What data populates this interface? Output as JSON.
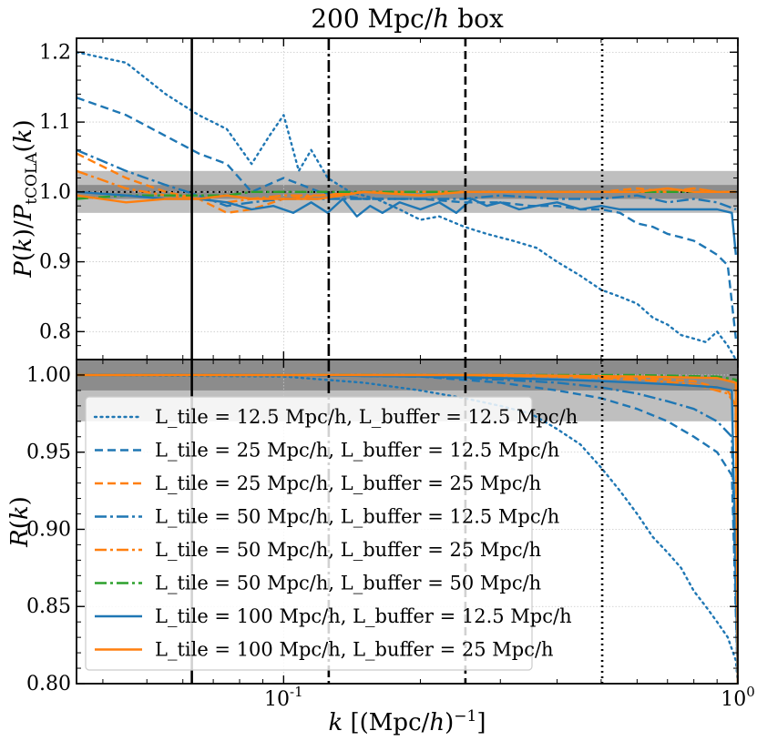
{
  "chart_data": [
    {
      "type": "line",
      "id": "top",
      "title": "200 Mpc/h box",
      "ylabel": "P(k)/P_tCOLA(k)",
      "xscale": "log",
      "xlim": [
        0.035,
        1.0
      ],
      "ylim": [
        0.76,
        1.22
      ],
      "yticks": [
        0.8,
        0.9,
        1.0,
        1.1,
        1.2
      ],
      "ytick_labels": [
        "0.8",
        "0.9",
        "1.0",
        "1.1",
        "1.2"
      ],
      "grid": true,
      "bands": [
        {
          "ymin": 0.97,
          "ymax": 1.03,
          "color": "#bfbfbf"
        },
        {
          "ymin": 0.99,
          "ymax": 1.01,
          "color": "#8c8c8c"
        }
      ],
      "hlines": [
        {
          "y": 1.0,
          "style": "dotted",
          "color": "#000000"
        }
      ],
      "vlines": [
        {
          "x": 0.0628,
          "style": "solid"
        },
        {
          "x": 0.1257,
          "style": "dashdot"
        },
        {
          "x": 0.2513,
          "style": "dashed"
        },
        {
          "x": 0.5027,
          "style": "dotted"
        }
      ],
      "series": [
        {
          "name": "L_tile = 12.5 Mpc/h, L_buffer = 12.5 Mpc/h",
          "color": "#1f77b4",
          "style": "dotted",
          "x": [
            0.035,
            0.045,
            0.055,
            0.065,
            0.075,
            0.085,
            0.093,
            0.1,
            0.108,
            0.115,
            0.125,
            0.14,
            0.16,
            0.18,
            0.2,
            0.22,
            0.25,
            0.28,
            0.32,
            0.36,
            0.4,
            0.45,
            0.5,
            0.55,
            0.6,
            0.65,
            0.7,
            0.75,
            0.8,
            0.85,
            0.9,
            0.95,
            0.99
          ],
          "y": [
            1.2,
            1.185,
            1.14,
            1.11,
            1.09,
            1.04,
            1.08,
            1.11,
            1.03,
            1.06,
            1.02,
            1.0,
            0.99,
            0.975,
            0.96,
            0.965,
            0.95,
            0.94,
            0.93,
            0.92,
            0.9,
            0.88,
            0.86,
            0.85,
            0.84,
            0.82,
            0.81,
            0.795,
            0.79,
            0.785,
            0.8,
            0.78,
            0.76
          ]
        },
        {
          "name": "L_tile = 25 Mpc/h, L_buffer = 12.5 Mpc/h",
          "color": "#1f77b4",
          "style": "dashed",
          "x": [
            0.035,
            0.045,
            0.055,
            0.065,
            0.075,
            0.085,
            0.1,
            0.12,
            0.15,
            0.2,
            0.25,
            0.3,
            0.35,
            0.4,
            0.45,
            0.5,
            0.55,
            0.6,
            0.65,
            0.7,
            0.75,
            0.8,
            0.85,
            0.9,
            0.95,
            0.99
          ],
          "y": [
            1.135,
            1.11,
            1.08,
            1.055,
            1.04,
            1.0,
            1.02,
            1.0,
            0.99,
            0.99,
            0.985,
            0.985,
            0.98,
            0.98,
            0.975,
            0.975,
            0.97,
            0.955,
            0.95,
            0.94,
            0.935,
            0.93,
            0.92,
            0.91,
            0.895,
            0.79
          ]
        },
        {
          "name": "L_tile = 25 Mpc/h, L_buffer = 25 Mpc/h",
          "color": "#ff7f0e",
          "style": "dashed",
          "x": [
            0.035,
            0.045,
            0.055,
            0.065,
            0.075,
            0.085,
            0.1,
            0.12,
            0.15,
            0.2,
            0.25,
            0.3,
            0.4,
            0.5,
            0.6,
            0.7,
            0.8,
            0.9,
            0.99
          ],
          "y": [
            1.055,
            1.02,
            1.0,
            0.99,
            0.97,
            0.975,
            0.99,
            0.995,
            1.0,
            1.0,
            1.0,
            1.0,
            1.0,
            1.0,
            1.005,
            1.0,
            1.005,
            1.0,
            1.0
          ]
        },
        {
          "name": "L_tile = 50 Mpc/h, L_buffer = 12.5 Mpc/h",
          "color": "#1f77b4",
          "style": "dashdot",
          "x": [
            0.035,
            0.045,
            0.055,
            0.065,
            0.075,
            0.085,
            0.1,
            0.12,
            0.15,
            0.2,
            0.25,
            0.3,
            0.4,
            0.5,
            0.6,
            0.7,
            0.8,
            0.9,
            0.99
          ],
          "y": [
            1.06,
            1.03,
            1.01,
            0.995,
            0.98,
            0.985,
            0.99,
            0.99,
            0.99,
            0.99,
            0.99,
            0.995,
            0.99,
            0.99,
            0.995,
            0.985,
            0.99,
            0.985,
            0.975
          ]
        },
        {
          "name": "L_tile = 50 Mpc/h, L_buffer = 25 Mpc/h",
          "color": "#ff7f0e",
          "style": "dashdot",
          "x": [
            0.035,
            0.045,
            0.055,
            0.065,
            0.075,
            0.085,
            0.1,
            0.12,
            0.15,
            0.2,
            0.3,
            0.4,
            0.5,
            0.6,
            0.7,
            0.8,
            0.9,
            0.99
          ],
          "y": [
            1.03,
            1.005,
            0.995,
            0.99,
            0.985,
            0.99,
            0.995,
            0.995,
            1.0,
            1.0,
            1.0,
            1.0,
            1.0,
            1.0,
            1.0,
            1.005,
            1.0,
            1.0
          ]
        },
        {
          "name": "L_tile = 50 Mpc/h, L_buffer = 50 Mpc/h",
          "color": "#2ca02c",
          "style": "dashdot",
          "x": [
            0.035,
            0.045,
            0.055,
            0.065,
            0.075,
            0.085,
            0.1,
            0.12,
            0.15,
            0.2,
            0.3,
            0.4,
            0.5,
            0.6,
            0.7,
            0.8,
            0.9,
            0.99
          ],
          "y": [
            0.99,
            0.995,
            0.995,
            0.995,
            0.995,
            1.0,
            1.0,
            1.0,
            1.0,
            1.0,
            1.0,
            1.0,
            1.0,
            1.0,
            1.0,
            1.0,
            1.0,
            1.0
          ]
        },
        {
          "name": "L_tile = 100 Mpc/h, L_buffer = 12.5 Mpc/h",
          "color": "#1f77b4",
          "style": "solid",
          "x": [
            0.035,
            0.045,
            0.055,
            0.065,
            0.075,
            0.085,
            0.095,
            0.105,
            0.115,
            0.125,
            0.135,
            0.145,
            0.155,
            0.165,
            0.18,
            0.2,
            0.22,
            0.24,
            0.26,
            0.28,
            0.3,
            0.33,
            0.36,
            0.4,
            0.45,
            0.5,
            0.55,
            0.6,
            0.7,
            0.8,
            0.9,
            0.97,
            0.99
          ],
          "y": [
            1.0,
            0.995,
            0.99,
            0.99,
            0.985,
            0.975,
            0.98,
            0.97,
            0.985,
            0.97,
            0.99,
            0.965,
            0.98,
            0.97,
            0.985,
            0.975,
            0.985,
            0.97,
            0.99,
            0.98,
            0.985,
            0.975,
            0.98,
            0.985,
            0.975,
            0.98,
            0.975,
            0.975,
            0.975,
            0.975,
            0.975,
            0.97,
            0.91
          ]
        },
        {
          "name": "L_tile = 100 Mpc/h, L_buffer = 25 Mpc/h",
          "color": "#ff7f0e",
          "style": "solid",
          "x": [
            0.035,
            0.045,
            0.055,
            0.065,
            0.075,
            0.085,
            0.1,
            0.12,
            0.15,
            0.2,
            0.25,
            0.3,
            0.4,
            0.5,
            0.6,
            0.7,
            0.8,
            0.9,
            0.99
          ],
          "y": [
            0.995,
            0.985,
            0.99,
            0.99,
            0.995,
            0.99,
            0.99,
            0.99,
            1.0,
            0.995,
            1.0,
            1.0,
            1.0,
            1.0,
            1.0,
            1.005,
            1.0,
            1.0,
            1.0
          ]
        }
      ]
    },
    {
      "type": "line",
      "id": "bottom",
      "xlabel": "k [(Mpc/h)^-1]",
      "ylabel": "R(k)",
      "xscale": "log",
      "xlim": [
        0.035,
        1.0
      ],
      "ylim": [
        0.8,
        1.01
      ],
      "xticks": [
        0.1,
        1.0
      ],
      "xtick_labels": [
        "10^-1",
        "10^0"
      ],
      "yticks": [
        0.8,
        0.85,
        0.9,
        0.95,
        1.0
      ],
      "ytick_labels": [
        "0.80",
        "0.85",
        "0.90",
        "0.95",
        "1.00"
      ],
      "grid": true,
      "bands": [
        {
          "ymin": 0.97,
          "ymax": 1.01,
          "color": "#bfbfbf"
        },
        {
          "ymin": 0.99,
          "ymax": 1.01,
          "color": "#8c8c8c"
        }
      ],
      "vlines": [
        {
          "x": 0.0628,
          "style": "solid"
        },
        {
          "x": 0.1257,
          "style": "dashdot"
        },
        {
          "x": 0.2513,
          "style": "dashed"
        },
        {
          "x": 0.5027,
          "style": "dotted"
        }
      ],
      "legend": {
        "placement": "upper-left"
      },
      "series": [
        {
          "name": "L_tile = 12.5 Mpc/h, L_buffer = 12.5 Mpc/h",
          "color": "#1f77b4",
          "style": "dotted",
          "x": [
            0.035,
            0.1,
            0.15,
            0.2,
            0.25,
            0.3,
            0.35,
            0.4,
            0.45,
            0.5,
            0.55,
            0.6,
            0.65,
            0.7,
            0.75,
            0.8,
            0.85,
            0.9,
            0.95,
            0.99,
            1.0
          ],
          "y": [
            1.0,
            0.999,
            0.995,
            0.99,
            0.985,
            0.98,
            0.975,
            0.965,
            0.955,
            0.94,
            0.925,
            0.91,
            0.895,
            0.885,
            0.875,
            0.86,
            0.85,
            0.84,
            0.83,
            0.815,
            0.8
          ]
        },
        {
          "name": "L_tile = 25 Mpc/h, L_buffer = 12.5 Mpc/h",
          "color": "#1f77b4",
          "style": "dashed",
          "x": [
            0.035,
            0.1,
            0.2,
            0.3,
            0.4,
            0.5,
            0.6,
            0.7,
            0.8,
            0.9,
            0.97,
            1.0
          ],
          "y": [
            1.0,
            1.0,
            0.999,
            0.995,
            0.99,
            0.985,
            0.978,
            0.97,
            0.96,
            0.95,
            0.935,
            0.8
          ]
        },
        {
          "name": "L_tile = 25 Mpc/h, L_buffer = 25 Mpc/h",
          "color": "#ff7f0e",
          "style": "dashed",
          "x": [
            0.035,
            0.2,
            0.4,
            0.6,
            0.8,
            0.95,
            0.99,
            1.0
          ],
          "y": [
            1.0,
            1.0,
            0.999,
            0.998,
            0.996,
            0.99,
            0.98,
            0.8
          ]
        },
        {
          "name": "L_tile = 50 Mpc/h, L_buffer = 12.5 Mpc/h",
          "color": "#1f77b4",
          "style": "dashdot",
          "x": [
            0.035,
            0.1,
            0.2,
            0.3,
            0.4,
            0.5,
            0.6,
            0.7,
            0.8,
            0.9,
            0.97,
            1.0
          ],
          "y": [
            1.0,
            1.0,
            0.999,
            0.997,
            0.995,
            0.992,
            0.988,
            0.983,
            0.978,
            0.97,
            0.96,
            0.8
          ]
        },
        {
          "name": "L_tile = 50 Mpc/h, L_buffer = 25 Mpc/h",
          "color": "#ff7f0e",
          "style": "dashdot",
          "x": [
            0.035,
            0.2,
            0.4,
            0.6,
            0.8,
            0.95,
            0.99,
            1.0
          ],
          "y": [
            1.0,
            1.0,
            0.999,
            0.997,
            0.994,
            0.988,
            0.98,
            0.8
          ]
        },
        {
          "name": "L_tile = 50 Mpc/h, L_buffer = 50 Mpc/h",
          "color": "#2ca02c",
          "style": "dashdot",
          "x": [
            0.035,
            0.3,
            0.6,
            0.9,
            0.99,
            1.0
          ],
          "y": [
            1.0,
            1.0,
            1.0,
            0.999,
            0.997,
            0.8
          ]
        },
        {
          "name": "L_tile = 100 Mpc/h, L_buffer = 12.5 Mpc/h",
          "color": "#1f77b4",
          "style": "solid",
          "x": [
            0.035,
            0.1,
            0.2,
            0.3,
            0.4,
            0.5,
            0.6,
            0.7,
            0.8,
            0.9,
            0.97,
            1.0
          ],
          "y": [
            1.0,
            1.0,
            0.999,
            0.998,
            0.997,
            0.996,
            0.995,
            0.994,
            0.993,
            0.992,
            0.99,
            0.8
          ]
        },
        {
          "name": "L_tile = 100 Mpc/h, L_buffer = 25 Mpc/h",
          "color": "#ff7f0e",
          "style": "solid",
          "x": [
            0.035,
            0.3,
            0.6,
            0.9,
            0.99,
            1.0
          ],
          "y": [
            1.0,
            1.0,
            0.999,
            0.998,
            0.995,
            0.8
          ]
        }
      ]
    }
  ]
}
